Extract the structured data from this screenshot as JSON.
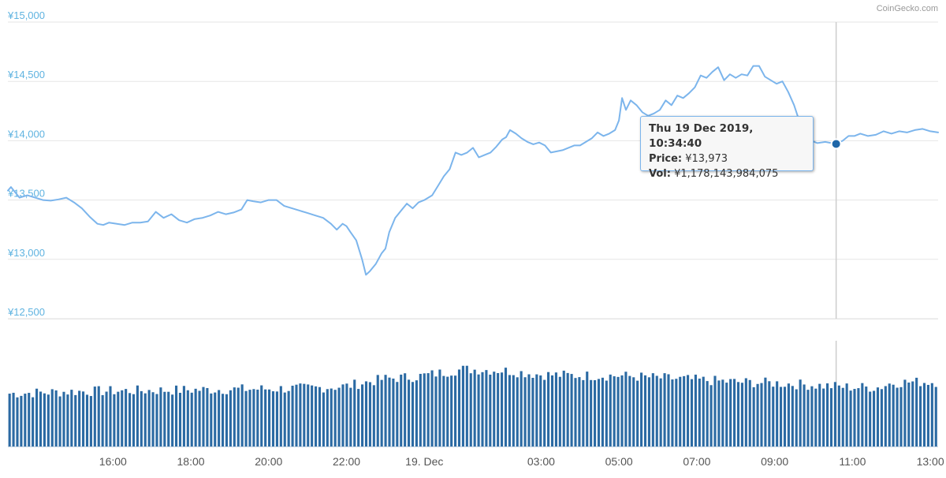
{
  "credit": "CoinGecko.com",
  "colors": {
    "line": "#7cb5ec",
    "volume": "#2b6aa3",
    "marker": "#1f67a8",
    "yaxis_label": "#5fb3e0",
    "crosshair": "#cccccc",
    "grid": "#e6e6e6"
  },
  "tooltip": {
    "title": "Thu 19 Dec 2019, 10:34:40",
    "price_label": "Price:",
    "price_value": "¥13,973",
    "vol_label": "Vol:",
    "vol_value": "¥1,178,143,984,075"
  },
  "chart_data": {
    "type": "line",
    "title": "",
    "ylabel": "",
    "xlabel": "",
    "ylim": [
      12500,
      15000
    ],
    "yticks": [
      12500,
      13000,
      13500,
      14000,
      14500,
      15000
    ],
    "ytick_labels": [
      "¥12,500",
      "¥13,000",
      "¥13,500",
      "¥14,000",
      "¥14,500",
      "¥15,000"
    ],
    "xticks": [
      {
        "label": "16:00",
        "hour": 16
      },
      {
        "label": "18:00",
        "hour": 18
      },
      {
        "label": "20:00",
        "hour": 20
      },
      {
        "label": "22:00",
        "hour": 22
      },
      {
        "label": "19. Dec",
        "hour": 24
      },
      {
        "label": "03:00",
        "hour": 27
      },
      {
        "label": "05:00",
        "hour": 29
      },
      {
        "label": "07:00",
        "hour": 31
      },
      {
        "label": "09:00",
        "hour": 33
      },
      {
        "label": "11:00",
        "hour": 35
      },
      {
        "label": "13:00",
        "hour": 37
      }
    ],
    "x_range_hours": [
      13.3,
      37.2
    ],
    "highlight": {
      "hour": 34.58,
      "price": 13973
    },
    "series": [
      {
        "price_points": [
          [
            13.3,
            13580
          ],
          [
            13.38,
            13610
          ],
          [
            13.5,
            13560
          ],
          [
            13.6,
            13520
          ],
          [
            13.8,
            13540
          ],
          [
            14.0,
            13520
          ],
          [
            14.2,
            13500
          ],
          [
            14.4,
            13495
          ],
          [
            14.6,
            13505
          ],
          [
            14.8,
            13520
          ],
          [
            15.0,
            13480
          ],
          [
            15.2,
            13430
          ],
          [
            15.4,
            13360
          ],
          [
            15.6,
            13300
          ],
          [
            15.75,
            13290
          ],
          [
            15.9,
            13310
          ],
          [
            16.1,
            13300
          ],
          [
            16.3,
            13290
          ],
          [
            16.5,
            13310
          ],
          [
            16.7,
            13310
          ],
          [
            16.9,
            13320
          ],
          [
            17.1,
            13400
          ],
          [
            17.3,
            13350
          ],
          [
            17.5,
            13380
          ],
          [
            17.7,
            13330
          ],
          [
            17.9,
            13310
          ],
          [
            18.1,
            13340
          ],
          [
            18.3,
            13350
          ],
          [
            18.5,
            13370
          ],
          [
            18.7,
            13400
          ],
          [
            18.9,
            13380
          ],
          [
            19.1,
            13395
          ],
          [
            19.3,
            13420
          ],
          [
            19.45,
            13500
          ],
          [
            19.6,
            13490
          ],
          [
            19.8,
            13480
          ],
          [
            20.0,
            13500
          ],
          [
            20.2,
            13500
          ],
          [
            20.4,
            13450
          ],
          [
            20.6,
            13430
          ],
          [
            20.8,
            13410
          ],
          [
            21.0,
            13390
          ],
          [
            21.2,
            13370
          ],
          [
            21.4,
            13350
          ],
          [
            21.6,
            13300
          ],
          [
            21.75,
            13250
          ],
          [
            21.9,
            13300
          ],
          [
            22.0,
            13280
          ],
          [
            22.1,
            13230
          ],
          [
            22.25,
            13160
          ],
          [
            22.4,
            13000
          ],
          [
            22.5,
            12870
          ],
          [
            22.6,
            12900
          ],
          [
            22.75,
            12960
          ],
          [
            22.9,
            13050
          ],
          [
            23.0,
            13090
          ],
          [
            23.1,
            13230
          ],
          [
            23.25,
            13350
          ],
          [
            23.4,
            13410
          ],
          [
            23.55,
            13470
          ],
          [
            23.7,
            13430
          ],
          [
            23.85,
            13480
          ],
          [
            24.0,
            13500
          ],
          [
            24.2,
            13540
          ],
          [
            24.35,
            13620
          ],
          [
            24.5,
            13700
          ],
          [
            24.65,
            13760
          ],
          [
            24.8,
            13900
          ],
          [
            24.95,
            13880
          ],
          [
            25.1,
            13900
          ],
          [
            25.25,
            13940
          ],
          [
            25.4,
            13860
          ],
          [
            25.55,
            13880
          ],
          [
            25.7,
            13900
          ],
          [
            25.85,
            13950
          ],
          [
            26.0,
            14010
          ],
          [
            26.1,
            14030
          ],
          [
            26.2,
            14090
          ],
          [
            26.35,
            14060
          ],
          [
            26.5,
            14020
          ],
          [
            26.65,
            13990
          ],
          [
            26.8,
            13970
          ],
          [
            26.95,
            13985
          ],
          [
            27.1,
            13960
          ],
          [
            27.25,
            13900
          ],
          [
            27.4,
            13910
          ],
          [
            27.55,
            13920
          ],
          [
            27.7,
            13940
          ],
          [
            27.85,
            13960
          ],
          [
            28.0,
            13960
          ],
          [
            28.15,
            13990
          ],
          [
            28.3,
            14020
          ],
          [
            28.45,
            14070
          ],
          [
            28.6,
            14040
          ],
          [
            28.75,
            14060
          ],
          [
            28.9,
            14090
          ],
          [
            29.0,
            14170
          ],
          [
            29.08,
            14360
          ],
          [
            29.18,
            14260
          ],
          [
            29.3,
            14340
          ],
          [
            29.45,
            14300
          ],
          [
            29.6,
            14240
          ],
          [
            29.75,
            14210
          ],
          [
            29.9,
            14230
          ],
          [
            30.05,
            14260
          ],
          [
            30.2,
            14340
          ],
          [
            30.35,
            14300
          ],
          [
            30.5,
            14380
          ],
          [
            30.65,
            14360
          ],
          [
            30.8,
            14400
          ],
          [
            30.95,
            14450
          ],
          [
            31.1,
            14550
          ],
          [
            31.25,
            14530
          ],
          [
            31.4,
            14580
          ],
          [
            31.55,
            14620
          ],
          [
            31.7,
            14510
          ],
          [
            31.85,
            14560
          ],
          [
            32.0,
            14530
          ],
          [
            32.15,
            14560
          ],
          [
            32.3,
            14550
          ],
          [
            32.45,
            14630
          ],
          [
            32.6,
            14630
          ],
          [
            32.75,
            14540
          ],
          [
            32.9,
            14510
          ],
          [
            33.05,
            14480
          ],
          [
            33.2,
            14500
          ],
          [
            33.35,
            14410
          ],
          [
            33.5,
            14300
          ],
          [
            33.65,
            14150
          ],
          [
            33.8,
            14020
          ],
          [
            33.95,
            14000
          ],
          [
            34.1,
            13980
          ],
          [
            34.3,
            13990
          ],
          [
            34.58,
            13973
          ],
          [
            34.75,
            14000
          ],
          [
            34.9,
            14040
          ],
          [
            35.05,
            14040
          ],
          [
            35.2,
            14060
          ],
          [
            35.4,
            14040
          ],
          [
            35.6,
            14050
          ],
          [
            35.8,
            14080
          ],
          [
            36.0,
            14060
          ],
          [
            36.2,
            14080
          ],
          [
            36.4,
            14070
          ],
          [
            36.6,
            14090
          ],
          [
            36.8,
            14100
          ],
          [
            37.0,
            14080
          ],
          [
            37.2,
            14070
          ]
        ]
      }
    ],
    "volume": {
      "ymax": 1.0,
      "bar_count": 240,
      "levels": [
        [
          13.3,
          0.5
        ],
        [
          15.0,
          0.52
        ],
        [
          17.0,
          0.53
        ],
        [
          19.0,
          0.54
        ],
        [
          21.0,
          0.55
        ],
        [
          22.0,
          0.57
        ],
        [
          22.4,
          0.6
        ],
        [
          23.0,
          0.64
        ],
        [
          23.8,
          0.66
        ],
        [
          24.5,
          0.7
        ],
        [
          25.0,
          0.73
        ],
        [
          26.0,
          0.72
        ],
        [
          27.0,
          0.68
        ],
        [
          28.0,
          0.67
        ],
        [
          29.0,
          0.67
        ],
        [
          30.0,
          0.65
        ],
        [
          31.0,
          0.63
        ],
        [
          32.0,
          0.61
        ],
        [
          33.0,
          0.6
        ],
        [
          34.0,
          0.58
        ],
        [
          35.0,
          0.56
        ],
        [
          35.7,
          0.56
        ],
        [
          36.0,
          0.6
        ],
        [
          36.5,
          0.61
        ],
        [
          37.2,
          0.61
        ]
      ]
    }
  }
}
